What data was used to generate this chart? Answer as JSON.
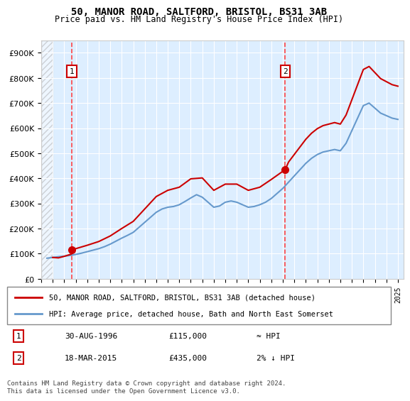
{
  "title": "50, MANOR ROAD, SALTFORD, BRISTOL, BS31 3AB",
  "subtitle": "Price paid vs. HM Land Registry's House Price Index (HPI)",
  "legend_line1": "50, MANOR ROAD, SALTFORD, BRISTOL, BS31 3AB (detached house)",
  "legend_line2": "HPI: Average price, detached house, Bath and North East Somerset",
  "transactions": [
    {
      "label": "1",
      "date": "30-AUG-1996",
      "price": 115000,
      "year": 1996.66,
      "hpi_diff": "≈ HPI"
    },
    {
      "label": "2",
      "date": "18-MAR-2015",
      "price": 435000,
      "year": 2015.21,
      "hpi_diff": "2% ↓ HPI"
    }
  ],
  "footer": "Contains HM Land Registry data © Crown copyright and database right 2024.\nThis data is licensed under the Open Government Licence v3.0.",
  "hpi_color": "#6699cc",
  "price_color": "#cc0000",
  "marker_color": "#cc0000",
  "dashed_line_color": "#ff4444",
  "hatch_color": "#cccccc",
  "bg_color": "#ddeeff",
  "ylim": [
    0,
    950000
  ],
  "xlim_start": 1994.0,
  "xlim_end": 2025.5,
  "hatch_end": 1995.0
}
